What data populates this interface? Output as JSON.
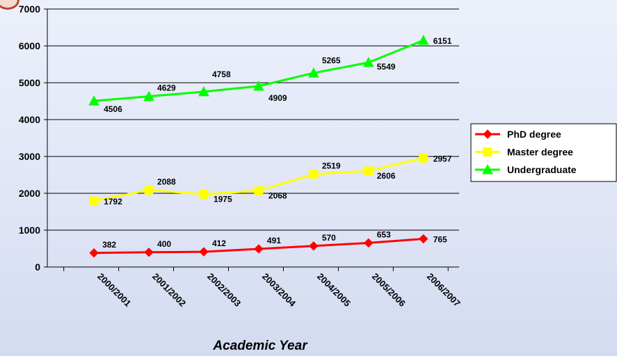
{
  "chart_data": {
    "type": "line",
    "xlabel": "Academic Year",
    "ylabel": "",
    "ylim": [
      0,
      7000
    ],
    "yticks": [
      0,
      1000,
      2000,
      3000,
      4000,
      5000,
      6000,
      7000
    ],
    "grid": "horizontal",
    "legend_position": "right",
    "categories": [
      "2000/2001",
      "2001/2002",
      "2002/2003",
      "2003/2004",
      "2004/2005",
      "2005/2006",
      "2006/2007"
    ],
    "series": [
      {
        "name": "PhD degree",
        "color": "#ff0000",
        "marker": "diamond",
        "values": [
          382,
          400,
          412,
          491,
          570,
          653,
          765
        ]
      },
      {
        "name": "Master degree",
        "color": "#ffff00",
        "marker": "square",
        "values": [
          1792,
          2088,
          1975,
          2068,
          2519,
          2606,
          2957
        ]
      },
      {
        "name": "Undergraduate",
        "color": "#00ff00",
        "marker": "triangle",
        "values": [
          4506,
          4629,
          4758,
          4909,
          5265,
          5549,
          6151
        ]
      }
    ]
  }
}
